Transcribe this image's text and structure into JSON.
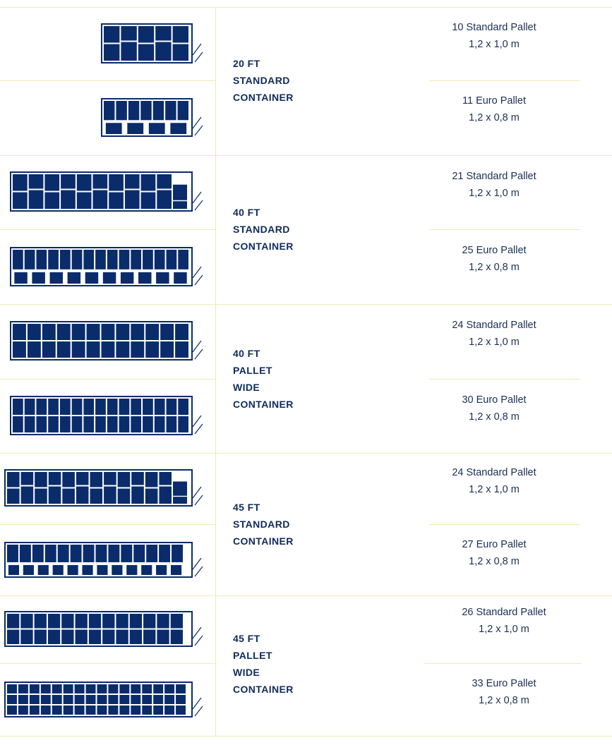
{
  "colors": {
    "navy": "#0a2c6b",
    "divider": "#f3e8b8",
    "text": "#1a2f55"
  },
  "containers": [
    {
      "title_lines": [
        "20 FT",
        "STANDARD",
        "CONTAINER"
      ],
      "loads": [
        {
          "count_label": "10 Standard Pallet",
          "size_label": "1,2 x 1,0 m"
        },
        {
          "count_label": "11 Euro Pallet",
          "size_label": "1,2 x 0,8 m"
        }
      ]
    },
    {
      "title_lines": [
        "40 FT",
        "STANDARD",
        "CONTAINER"
      ],
      "loads": [
        {
          "count_label": "21 Standard Pallet",
          "size_label": "1,2 x 1,0 m"
        },
        {
          "count_label": "25 Euro Pallet",
          "size_label": "1,2 x 0,8 m"
        }
      ]
    },
    {
      "title_lines": [
        "40 FT",
        "PALLET",
        "WIDE",
        "CONTAINER"
      ],
      "loads": [
        {
          "count_label": "24 Standard Pallet",
          "size_label": "1,2 x 1,0 m"
        },
        {
          "count_label": "30 Euro Pallet",
          "size_label": "1,2 x 0,8 m"
        }
      ]
    },
    {
      "title_lines": [
        "45 FT",
        "STANDARD",
        "CONTAINER"
      ],
      "loads": [
        {
          "count_label": "24 Standard Pallet",
          "size_label": "1,2 x 1,0 m"
        },
        {
          "count_label": "27 Euro Pallet",
          "size_label": "1,2 x 0,8 m"
        }
      ]
    },
    {
      "title_lines": [
        "45 FT",
        "PALLET",
        "WIDE",
        "CONTAINER"
      ],
      "loads": [
        {
          "count_label": "26 Standard Pallet",
          "size_label": "1,2 x 1,0 m"
        },
        {
          "count_label": "33 Euro Pallet",
          "size_label": "1,2 x 0,8 m"
        }
      ]
    }
  ]
}
